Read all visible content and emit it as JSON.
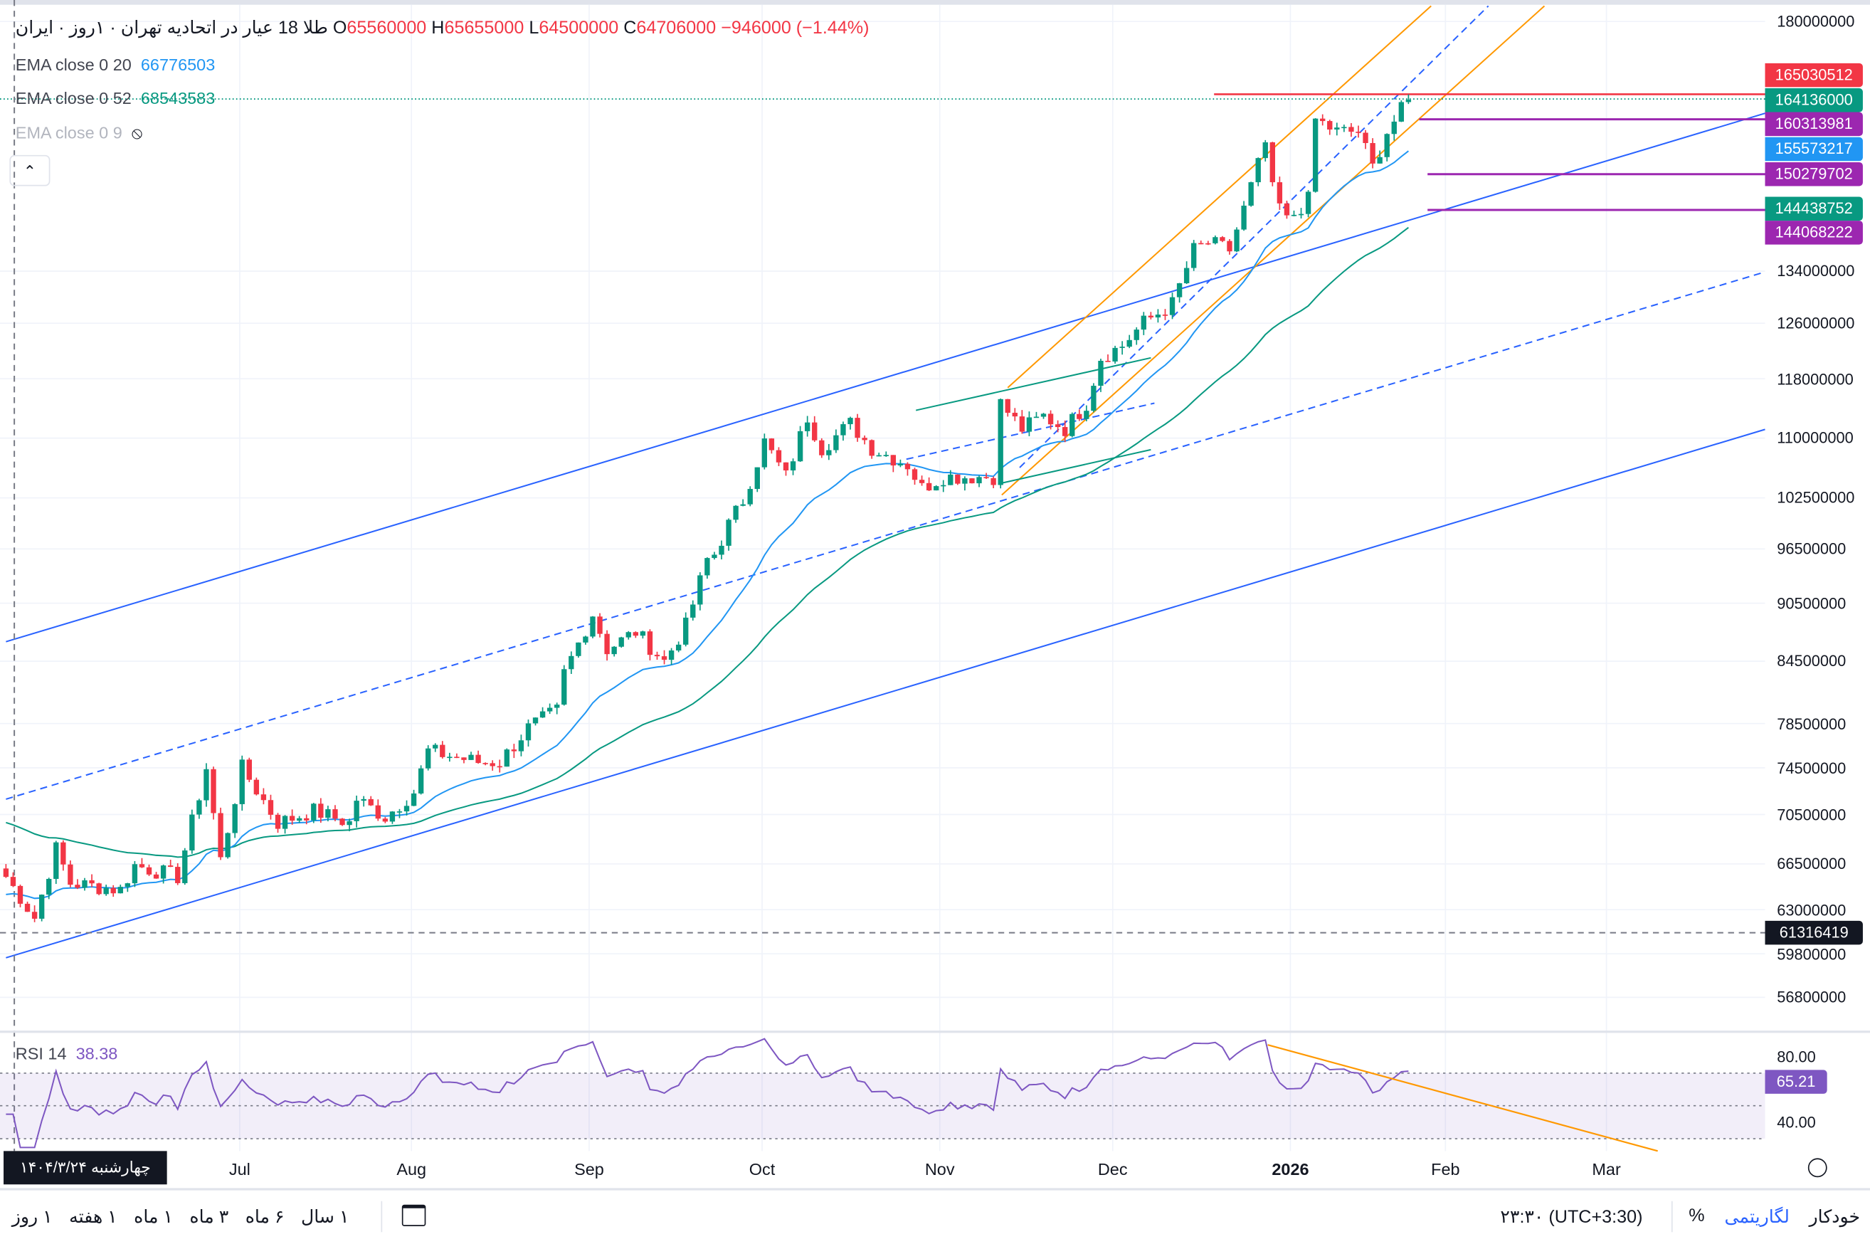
{
  "header": {
    "symbol": "طلا 18 عیار در اتحادیه تهران",
    "interval": "۱روز",
    "exchange": "ایران",
    "ohlc": {
      "o_label": "O",
      "o": "65560000",
      "h_label": "H",
      "h": "65655000",
      "l_label": "L",
      "l": "64500000",
      "c_label": "C",
      "c": "64706000",
      "change": "−946000 (−1.44%)"
    }
  },
  "indicators": [
    {
      "label": "EMA close 0 20",
      "value": "66776503",
      "color": "#2196f3"
    },
    {
      "label": "EMA close 0 52",
      "value": "68543583",
      "color": "#089981"
    },
    {
      "label": "EMA close 0 9",
      "value": "",
      "color": "#b2b5be",
      "hidden": true
    }
  ],
  "price_axis": [
    "180000000",
    "134000000",
    "126000000",
    "118000000",
    "110000000",
    "102500000",
    "96500000",
    "90500000",
    "84500000",
    "78500000",
    "74500000",
    "70500000",
    "66500000",
    "63000000",
    "59800000",
    "56800000"
  ],
  "price_tags": [
    {
      "value": "165030512",
      "color": "#f23645"
    },
    {
      "value": "164136000",
      "color": "#089981"
    },
    {
      "value": "160313981",
      "color": "#9c27b0"
    },
    {
      "value": "155573217",
      "color": "#2196f3"
    },
    {
      "value": "150279702",
      "color": "#9c27b0"
    },
    {
      "value": "144438752",
      "color": "#089981"
    },
    {
      "value": "144068222",
      "color": "#9c27b0"
    }
  ],
  "crosshair": {
    "price": "61316419",
    "date": "چهارشنبه ۱۴۰۴/۳/۲۴"
  },
  "rsi": {
    "label": "RSI 14",
    "value": "38.38",
    "axis": [
      "80.00",
      "40.00"
    ],
    "tag": "65.21",
    "color": "#7e57c2"
  },
  "time_axis": [
    "Jul",
    "Aug",
    "Sep",
    "Oct",
    "Nov",
    "Dec",
    "2026",
    "Feb",
    "Mar"
  ],
  "bottom_bar": {
    "ranges": [
      "۱ روز",
      "۱ هفته",
      "۱ ماه",
      "۳ ماه",
      "۶ ماه",
      "۱ سال"
    ],
    "time": "۲۳:۳۰ (UTC+3:30)",
    "percent": "%",
    "log": "لگاریتمی",
    "auto": "خودکار"
  },
  "chart_data": {
    "type": "candlestick",
    "title": "طلا 18 عیار در اتحادیه تهران",
    "yscale": "log",
    "ylim": [
      56000000,
      182000000
    ],
    "close_keypoints_day_index": [
      [
        0,
        65.5
      ],
      [
        4,
        62.4
      ],
      [
        7,
        67.7
      ],
      [
        9,
        65.0
      ],
      [
        16,
        64.5
      ],
      [
        18,
        66.4
      ],
      [
        24,
        65.5
      ],
      [
        28,
        74.5
      ],
      [
        30,
        66.8
      ],
      [
        33,
        74.5
      ],
      [
        38,
        69.8
      ],
      [
        43,
        70.8
      ],
      [
        48,
        69.8
      ],
      [
        49,
        71.8
      ],
      [
        53,
        70.3
      ],
      [
        57,
        72.4
      ],
      [
        59,
        76.0
      ],
      [
        66,
        75.0
      ],
      [
        69,
        75.0
      ],
      [
        73,
        78.1
      ],
      [
        77,
        79.7
      ],
      [
        78,
        83.3
      ],
      [
        82,
        89.4
      ],
      [
        84,
        85.7
      ],
      [
        88,
        87.5
      ],
      [
        92,
        84.5
      ],
      [
        95,
        88.1
      ],
      [
        98,
        95.3
      ],
      [
        99,
        95.9
      ],
      [
        101,
        99.3
      ],
      [
        103,
        102.2
      ],
      [
        106,
        109.5
      ],
      [
        109,
        105.1
      ],
      [
        112,
        112.8
      ],
      [
        114,
        108.7
      ],
      [
        118,
        111.9
      ],
      [
        121,
        108.7
      ],
      [
        126,
        106.6
      ],
      [
        128,
        103.7
      ],
      [
        131,
        105.1
      ],
      [
        138,
        105.1
      ],
      [
        139,
        114.6
      ],
      [
        142,
        111.2
      ],
      [
        145,
        112.9
      ],
      [
        148,
        111.2
      ],
      [
        151,
        114.6
      ],
      [
        153,
        121.0
      ],
      [
        156,
        122.7
      ],
      [
        159,
        126.1
      ],
      [
        163,
        128.9
      ],
      [
        166,
        137.4
      ],
      [
        168,
        138.6
      ],
      [
        171,
        137.4
      ],
      [
        173,
        144.2
      ],
      [
        176,
        155.9
      ],
      [
        177,
        147.4
      ],
      [
        179,
        142.2
      ],
      [
        182,
        145.8
      ],
      [
        183,
        160.3
      ],
      [
        186,
        158.0
      ],
      [
        189,
        158.0
      ],
      [
        191,
        151.5
      ],
      [
        193,
        158.0
      ],
      [
        196,
        164.1
      ]
    ],
    "unit_multiplier": 1000000,
    "series": [
      {
        "name": "EMA 20",
        "period": 20
      },
      {
        "name": "EMA 52",
        "period": 52
      },
      {
        "name": "RSI 14",
        "period": 14
      }
    ],
    "colors": {
      "up": "#089981",
      "down": "#f23645",
      "ema20": "#2196f3",
      "ema52": "#089981",
      "rsi": "#7e57c2"
    }
  }
}
